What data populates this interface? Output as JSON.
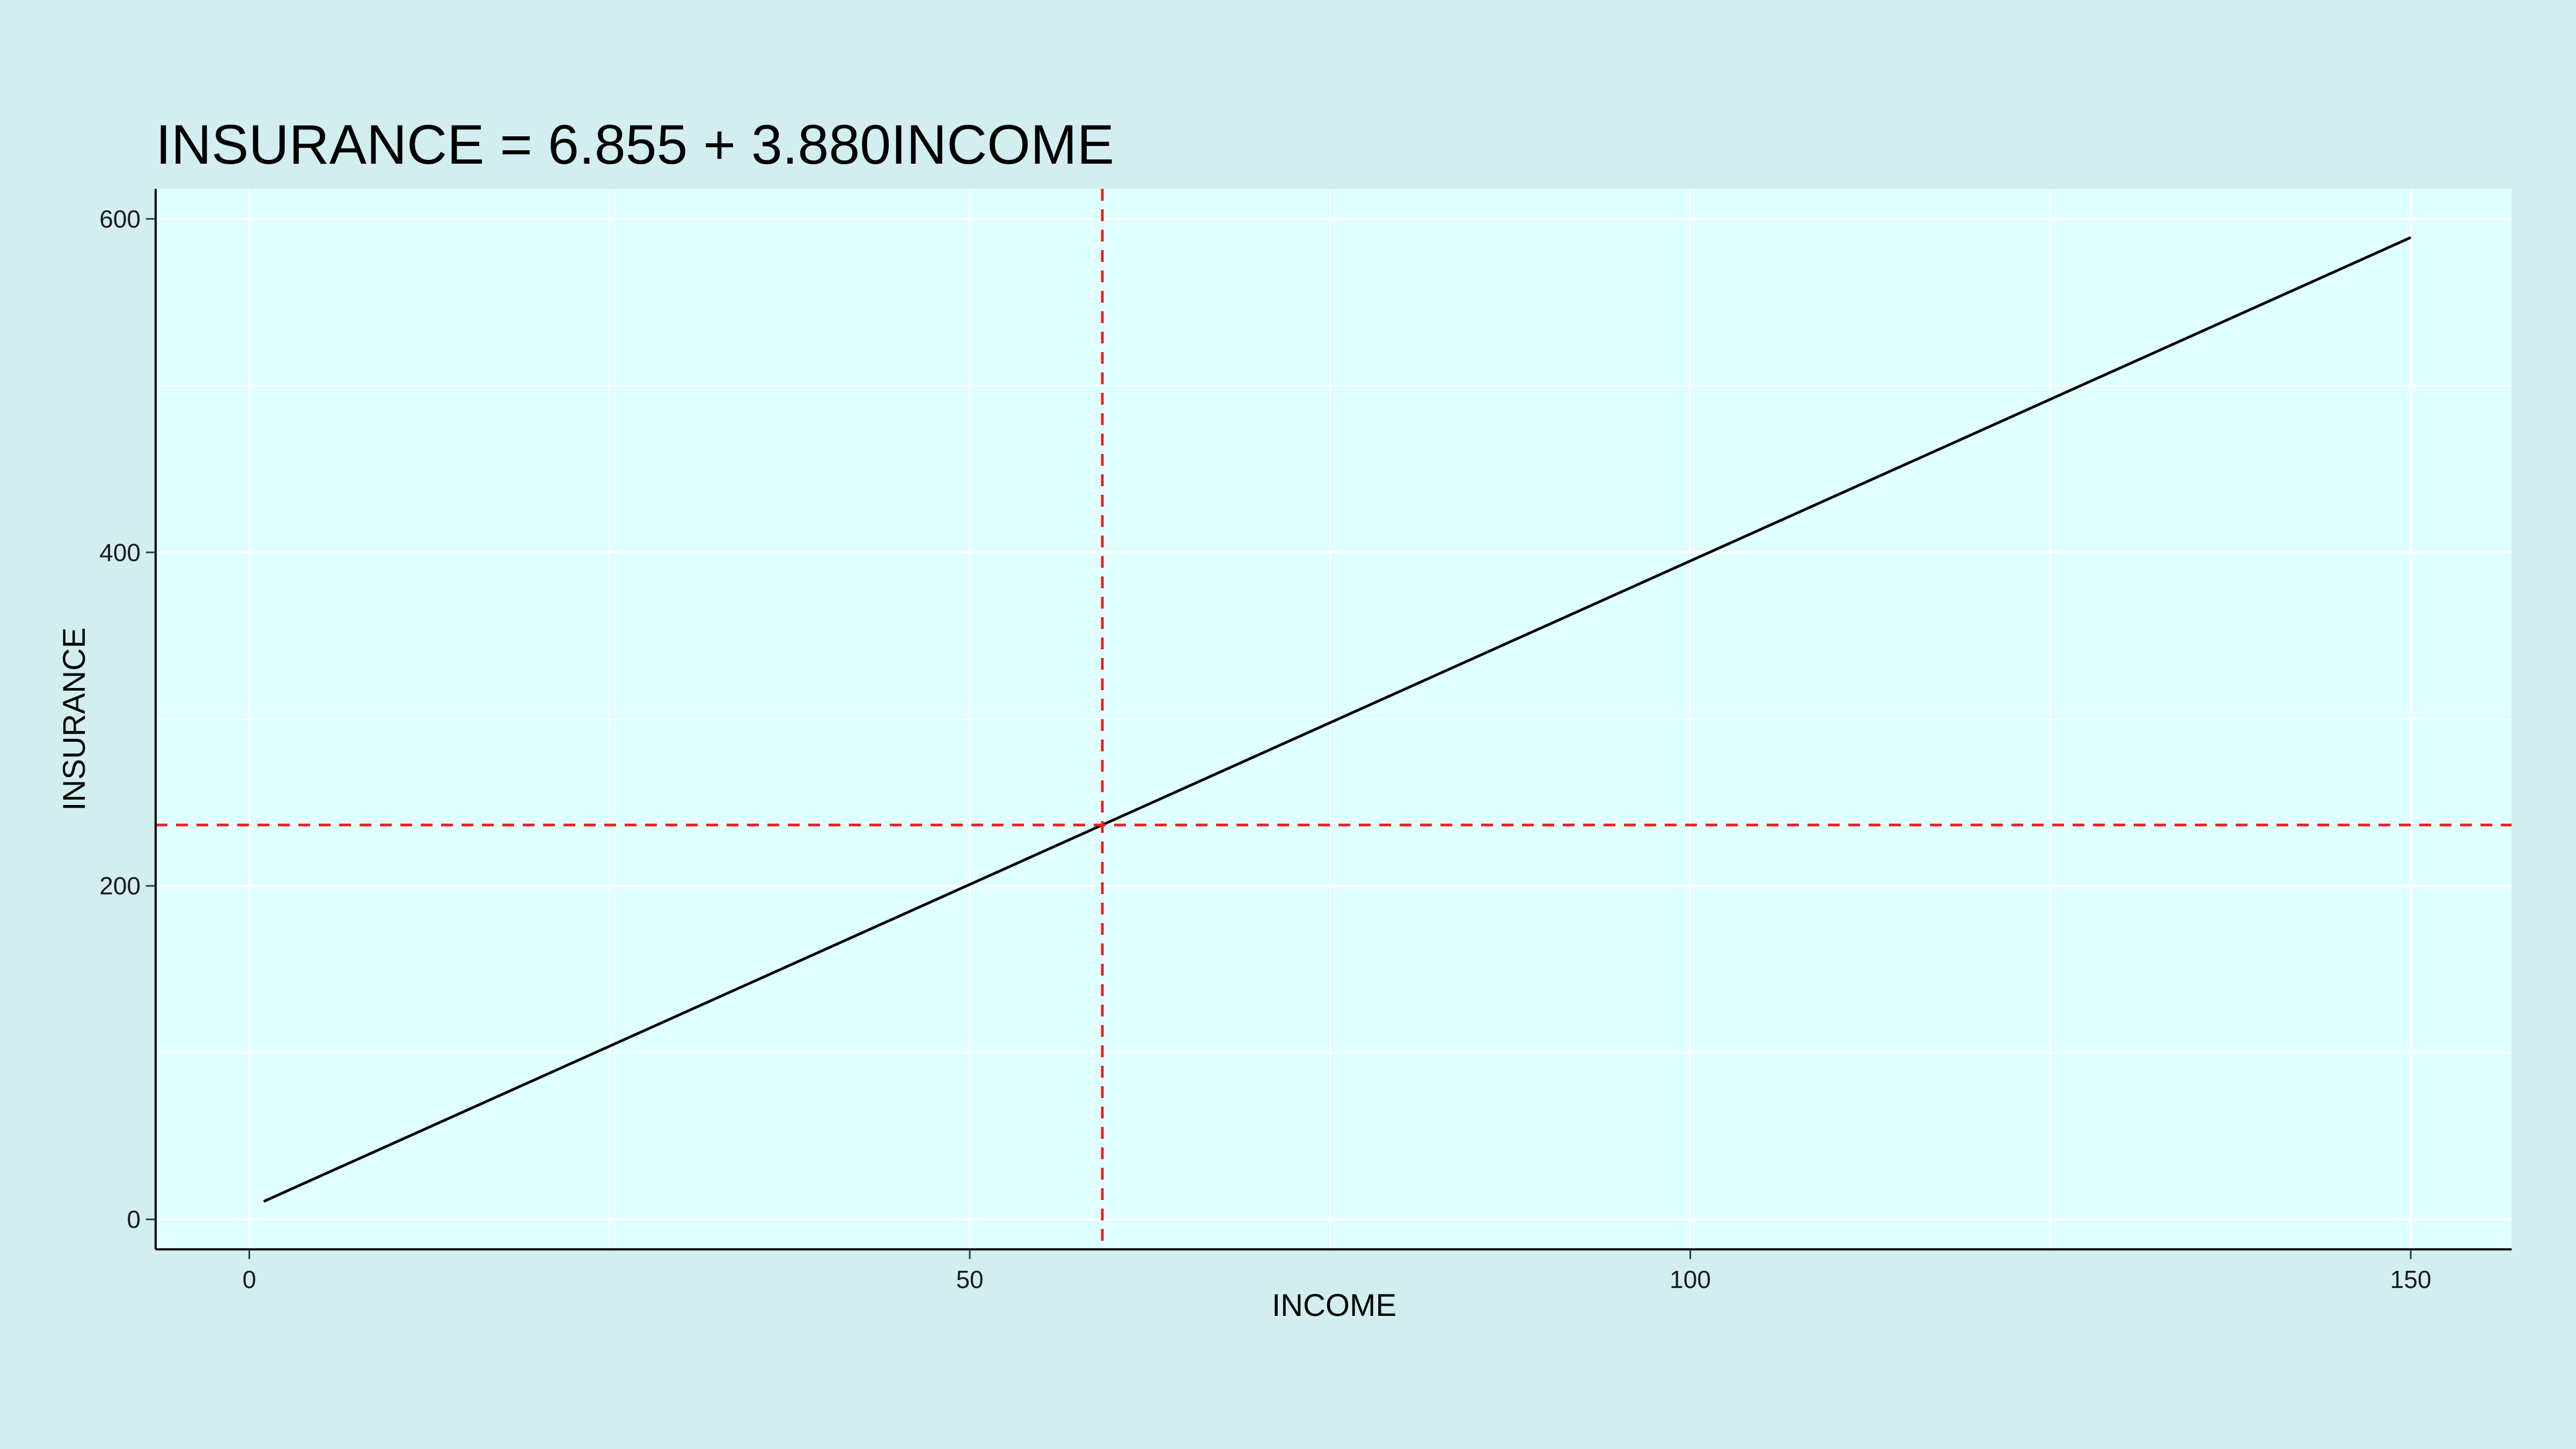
{
  "chart_data": {
    "type": "line",
    "title": "INSURANCE = 6.855 + 3.880INCOME",
    "xlabel": "INCOME",
    "ylabel": "INSURANCE",
    "xlim": [
      -6.5,
      157
    ],
    "ylim": [
      -18,
      618
    ],
    "x_ticks": [
      0,
      50,
      100,
      150
    ],
    "y_ticks": [
      0,
      200,
      400,
      600
    ],
    "x_tick_labels": [
      "0",
      "50",
      "100",
      "150"
    ],
    "y_tick_labels": [
      "0",
      "200",
      "400",
      "600"
    ],
    "minor_x_gridlines": [
      25,
      75,
      125
    ],
    "minor_y_gridlines": [
      100,
      300,
      500
    ],
    "grid": true,
    "series": [
      {
        "x": [
          1,
          150
        ],
        "y": [
          10.735,
          588.855
        ],
        "color": "#000000"
      }
    ],
    "reference_lines": [
      {
        "orientation": "vertical",
        "value": 59.2,
        "color": "#e8221c",
        "style": "dashed"
      },
      {
        "orientation": "horizontal",
        "value": 236.5,
        "color": "#e8221c",
        "style": "dashed"
      }
    ],
    "colors": {
      "page_background": "#d2eeee",
      "panel_background": "#e0ffff",
      "grid": "#ffffff",
      "axis": "#000000"
    }
  }
}
